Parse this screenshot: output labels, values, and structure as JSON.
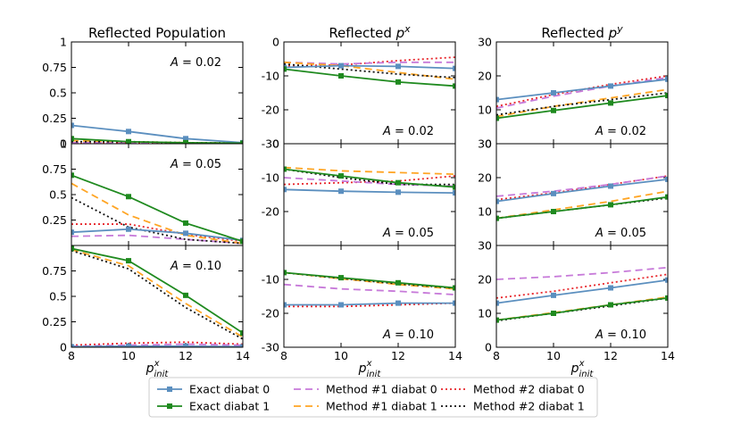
{
  "chart_data": [
    {
      "type": "line",
      "column": 0,
      "title": "Reflected Population",
      "xlabel": "p^x_init",
      "x": [
        8,
        10,
        12,
        14
      ],
      "xlim": [
        8,
        14
      ],
      "panels": [
        {
          "label": "A = 0.02",
          "ylim": [
            0,
            1
          ],
          "yticks": [
            "0",
            "0.25",
            "0.5",
            "0.75",
            "1"
          ],
          "series": [
            {
              "name": "Exact diabat 0",
              "values": [
                0.18,
                0.12,
                0.05,
                0.01
              ]
            },
            {
              "name": "Exact diabat 1",
              "values": [
                0.05,
                0.02,
                0.01,
                0.005
              ]
            },
            {
              "name": "Method #1 diabat 0",
              "values": [
                0.01,
                0.01,
                0.01,
                0.005
              ]
            },
            {
              "name": "Method #1 diabat 1",
              "values": [
                0.03,
                0.02,
                0.01,
                0.005
              ]
            },
            {
              "name": "Method #2 diabat 0",
              "values": [
                0.0,
                0.01,
                0.01,
                0.005
              ]
            },
            {
              "name": "Method #2 diabat 1",
              "values": [
                0.02,
                0.02,
                0.01,
                0.005
              ]
            }
          ]
        },
        {
          "label": "A = 0.05",
          "ylim": [
            0,
            1
          ],
          "yticks": [
            "",
            "0.25",
            "0.5",
            "0.75",
            "1"
          ],
          "series": [
            {
              "name": "Exact diabat 0",
              "values": [
                0.13,
                0.16,
                0.12,
                0.05
              ]
            },
            {
              "name": "Exact diabat 1",
              "values": [
                0.69,
                0.48,
                0.22,
                0.04
              ]
            },
            {
              "name": "Method #1 diabat 0",
              "values": [
                0.09,
                0.1,
                0.06,
                0.02
              ]
            },
            {
              "name": "Method #1 diabat 1",
              "values": [
                0.61,
                0.3,
                0.1,
                0.02
              ]
            },
            {
              "name": "Method #2 diabat 0",
              "values": [
                0.21,
                0.21,
                0.11,
                0.04
              ]
            },
            {
              "name": "Method #2 diabat 1",
              "values": [
                0.47,
                0.18,
                0.06,
                0.02
              ]
            }
          ]
        },
        {
          "label": "A = 0.10",
          "ylim": [
            0,
            1
          ],
          "yticks": [
            "0",
            "0.25",
            "0.5",
            "0.75",
            ""
          ],
          "series": [
            {
              "name": "Exact diabat 0",
              "values": [
                0.005,
                0.01,
                0.01,
                0.005
              ]
            },
            {
              "name": "Exact diabat 1",
              "values": [
                0.97,
                0.85,
                0.51,
                0.14
              ]
            },
            {
              "name": "Method #1 diabat 0",
              "values": [
                0.01,
                0.02,
                0.03,
                0.02
              ]
            },
            {
              "name": "Method #1 diabat 1",
              "values": [
                0.96,
                0.8,
                0.43,
                0.1
              ]
            },
            {
              "name": "Method #2 diabat 0",
              "values": [
                0.02,
                0.04,
                0.05,
                0.03
              ]
            },
            {
              "name": "Method #2 diabat 1",
              "values": [
                0.95,
                0.77,
                0.39,
                0.08
              ]
            }
          ]
        }
      ]
    },
    {
      "type": "line",
      "column": 1,
      "title": "Reflected p^x",
      "xlabel": "p^x_init",
      "x": [
        8,
        10,
        12,
        14
      ],
      "xlim": [
        8,
        14
      ],
      "panels": [
        {
          "label": "A = 0.02",
          "ylim": [
            -30,
            0
          ],
          "yticks": [
            "-30",
            "-20",
            "-10",
            "0"
          ],
          "series": [
            {
              "name": "Exact diabat 0",
              "values": [
                -7.5,
                -7.0,
                -7.2,
                -7.8
              ]
            },
            {
              "name": "Exact diabat 1",
              "values": [
                -8.0,
                -10.0,
                -11.8,
                -13.0
              ]
            },
            {
              "name": "Method #1 diabat 0",
              "values": [
                -6.0,
                -6.5,
                -6.0,
                -6.0
              ]
            },
            {
              "name": "Method #1 diabat 1",
              "values": [
                -6.0,
                -7.0,
                -9.0,
                -11.0
              ]
            },
            {
              "name": "Method #2 diabat 0",
              "values": [
                -7.0,
                -6.8,
                -5.5,
                -4.5
              ]
            },
            {
              "name": "Method #2 diabat 1",
              "values": [
                -6.5,
                -8.0,
                -9.5,
                -10.5
              ]
            }
          ]
        },
        {
          "label": "A = 0.05",
          "ylim": [
            -30,
            0
          ],
          "yticks": [
            "",
            "-20",
            "-10",
            "0"
          ],
          "series": [
            {
              "name": "Exact diabat 0",
              "values": [
                -13.5,
                -14.0,
                -14.3,
                -14.5
              ]
            },
            {
              "name": "Exact diabat 1",
              "values": [
                -7.5,
                -9.5,
                -11.5,
                -12.8
              ]
            },
            {
              "name": "Method #1 diabat 0",
              "values": [
                -10.0,
                -11.0,
                -12.0,
                -12.5
              ]
            },
            {
              "name": "Method #1 diabat 1",
              "values": [
                -7.0,
                -8.0,
                -8.5,
                -9.0
              ]
            },
            {
              "name": "Method #2 diabat 0",
              "values": [
                -12.0,
                -11.5,
                -11.0,
                -9.5
              ]
            },
            {
              "name": "Method #2 diabat 1",
              "values": [
                -7.5,
                -10.0,
                -12.0,
                -12.0
              ]
            }
          ]
        },
        {
          "label": "A = 0.10",
          "ylim": [
            -30,
            0
          ],
          "yticks": [
            "-30",
            "-20",
            "-10",
            ""
          ],
          "series": [
            {
              "name": "Exact diabat 0",
              "values": [
                -17.5,
                -17.5,
                -17.0,
                -17.0
              ]
            },
            {
              "name": "Exact diabat 1",
              "values": [
                -8.0,
                -9.5,
                -11.0,
                -12.5
              ]
            },
            {
              "name": "Method #1 diabat 0",
              "values": [
                -11.5,
                -12.8,
                -13.5,
                -14.5
              ]
            },
            {
              "name": "Method #1 diabat 1",
              "values": [
                -8.0,
                -9.8,
                -11.5,
                -12.8
              ]
            },
            {
              "name": "Method #2 diabat 0",
              "values": [
                -18.0,
                -18.0,
                -17.5,
                -17.0
              ]
            },
            {
              "name": "Method #2 diabat 1",
              "values": [
                -8.0,
                -9.7,
                -11.3,
                -12.6
              ]
            }
          ]
        }
      ]
    },
    {
      "type": "line",
      "column": 2,
      "title": "Reflected p^y",
      "xlabel": "p^x_init",
      "x": [
        8,
        10,
        12,
        14
      ],
      "xlim": [
        8,
        14
      ],
      "panels": [
        {
          "label": "A = 0.02",
          "ylim": [
            0,
            30
          ],
          "yticks": [
            "0",
            "10",
            "20",
            "30"
          ],
          "series": [
            {
              "name": "Exact diabat 0",
              "values": [
                13.0,
                15.0,
                17.0,
                19.0
              ]
            },
            {
              "name": "Exact diabat 1",
              "values": [
                7.5,
                9.8,
                12.0,
                14.2
              ]
            },
            {
              "name": "Method #1 diabat 0",
              "values": [
                10.5,
                14.0,
                17.0,
                19.5
              ]
            },
            {
              "name": "Method #1 diabat 1",
              "values": [
                8.0,
                11.0,
                13.5,
                16.0
              ]
            },
            {
              "name": "Method #2 diabat 0",
              "values": [
                11.0,
                14.5,
                17.5,
                20.0
              ]
            },
            {
              "name": "Method #2 diabat 1",
              "values": [
                8.5,
                11.0,
                13.0,
                15.0
              ]
            }
          ]
        },
        {
          "label": "A = 0.05",
          "ylim": [
            0,
            30
          ],
          "yticks": [
            "",
            "10",
            "20",
            "30"
          ],
          "series": [
            {
              "name": "Exact diabat 0",
              "values": [
                13.0,
                15.3,
                17.5,
                19.5
              ]
            },
            {
              "name": "Exact diabat 1",
              "values": [
                8.0,
                10.0,
                12.0,
                14.3
              ]
            },
            {
              "name": "Method #1 diabat 0",
              "values": [
                14.5,
                16.0,
                18.0,
                20.5
              ]
            },
            {
              "name": "Method #1 diabat 1",
              "values": [
                8.0,
                10.5,
                13.0,
                16.0
              ]
            },
            {
              "name": "Method #2 diabat 0",
              "values": [
                13.5,
                15.5,
                18.0,
                20.5
              ]
            },
            {
              "name": "Method #2 diabat 1",
              "values": [
                8.0,
                10.0,
                12.0,
                14.0
              ]
            }
          ]
        },
        {
          "label": "A = 0.10",
          "ylim": [
            0,
            30
          ],
          "yticks": [
            "0",
            "10",
            "20",
            "30"
          ],
          "series": [
            {
              "name": "Exact diabat 0",
              "values": [
                13.0,
                15.3,
                17.5,
                19.8
              ]
            },
            {
              "name": "Exact diabat 1",
              "values": [
                8.0,
                10.0,
                12.5,
                14.5
              ]
            },
            {
              "name": "Method #1 diabat 0",
              "values": [
                20.0,
                20.8,
                22.0,
                23.5
              ]
            },
            {
              "name": "Method #1 diabat 1",
              "values": [
                8.0,
                10.2,
                12.5,
                14.8
              ]
            },
            {
              "name": "Method #2 diabat 0",
              "values": [
                14.5,
                16.5,
                19.0,
                21.5
              ]
            },
            {
              "name": "Method #2 diabat 1",
              "values": [
                7.8,
                10.0,
                12.2,
                14.5
              ]
            }
          ]
        }
      ]
    }
  ],
  "xticks": [
    "8",
    "10",
    "12",
    "14"
  ],
  "xlabel_text": {
    "base": "p",
    "sup": "x",
    "sub": "init"
  },
  "legend": [
    {
      "name": "Exact diabat 0",
      "color": "#5b8fbf",
      "dash": "",
      "marker": true
    },
    {
      "name": "Exact diabat 1",
      "color": "#1f8a1f",
      "dash": "",
      "marker": true
    },
    {
      "name": "Method #1 diabat 0",
      "color": "#c77ad9",
      "dash": "8,5",
      "marker": false
    },
    {
      "name": "Method #1 diabat 1",
      "color": "#ffa524",
      "dash": "8,5",
      "marker": false
    },
    {
      "name": "Method #2 diabat 0",
      "color": "#e8262b",
      "dash": "2,3",
      "marker": false
    },
    {
      "name": "Method #2 diabat 1",
      "color": "#111111",
      "dash": "2,3",
      "marker": false
    }
  ]
}
